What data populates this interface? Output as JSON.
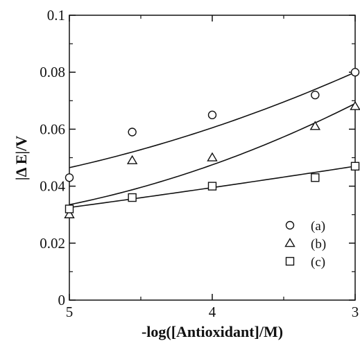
{
  "chart_data": {
    "type": "scatter",
    "xlabel": "-log([Antioxidant]/M)",
    "ylabel": "|Δ E|/V",
    "xlim": [
      5,
      3
    ],
    "ylim": [
      0,
      0.1
    ],
    "x_reversed": true,
    "x_ticks": [
      "5",
      "4",
      "3"
    ],
    "y_ticks": [
      "0",
      "0.02",
      "0.04",
      "0.06",
      "0.08",
      "0.1"
    ],
    "legend_position": "bottom-right",
    "series": [
      {
        "name": "(a)",
        "marker": "circle",
        "points": [
          [
            5.0,
            0.043
          ],
          [
            4.56,
            0.059
          ],
          [
            4.0,
            0.065
          ],
          [
            3.28,
            0.072
          ],
          [
            3.0,
            0.08
          ]
        ],
        "fit": [
          [
            5.0,
            0.0465
          ],
          [
            4.0,
            0.0605
          ],
          [
            3.0,
            0.08
          ]
        ]
      },
      {
        "name": "(b)",
        "marker": "triangle",
        "points": [
          [
            5.0,
            0.03
          ],
          [
            4.56,
            0.049
          ],
          [
            4.0,
            0.05
          ],
          [
            3.28,
            0.061
          ],
          [
            3.0,
            0.068
          ]
        ],
        "fit": [
          [
            5.0,
            0.0335
          ],
          [
            4.0,
            0.0475
          ],
          [
            3.0,
            0.069
          ]
        ]
      },
      {
        "name": "(c)",
        "marker": "square",
        "points": [
          [
            5.0,
            0.032
          ],
          [
            4.56,
            0.036
          ],
          [
            4.0,
            0.04
          ],
          [
            3.28,
            0.043
          ],
          [
            3.0,
            0.047
          ]
        ],
        "fit": [
          [
            5.0,
            0.0325
          ],
          [
            4.0,
            0.0395
          ],
          [
            3.0,
            0.047
          ]
        ]
      }
    ]
  }
}
